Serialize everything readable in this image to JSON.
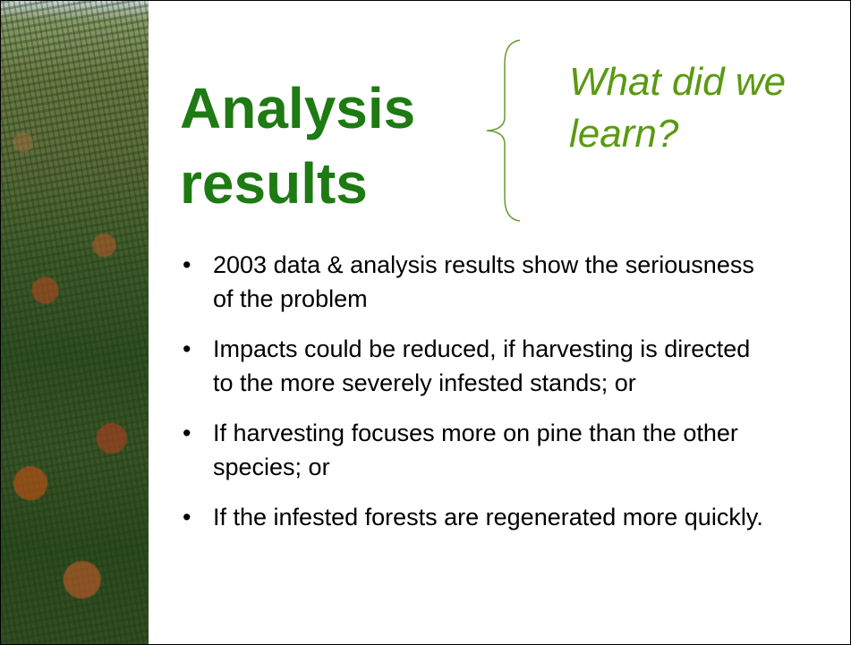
{
  "header": {
    "title": "Analysis results",
    "subtitle": "What did we learn?"
  },
  "bullets": [
    "2003 data & analysis results show the seriousness of the problem",
    "Impacts could be reduced, if harvesting is directed to the more severely infested stands; or",
    "If harvesting focuses more on pine than the other species; or",
    "If the infested forests are regenerated more quickly."
  ]
}
